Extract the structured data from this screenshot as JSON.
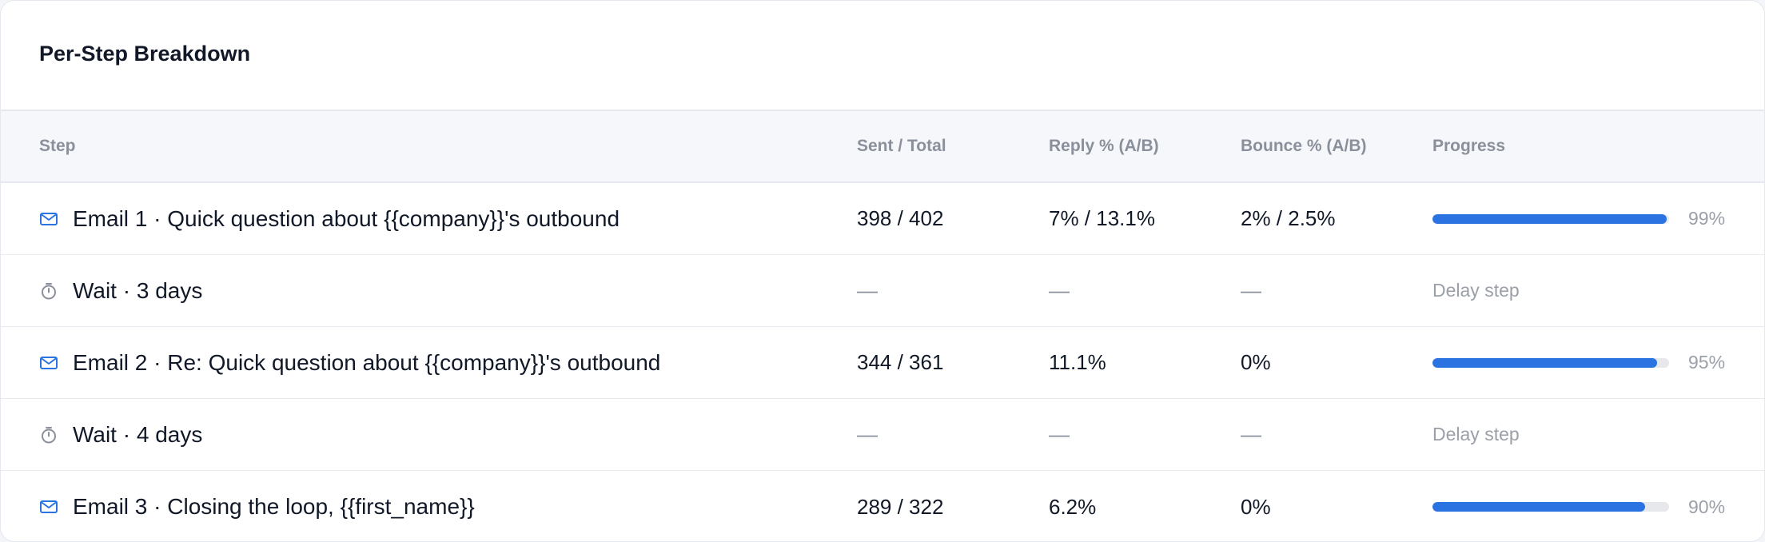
{
  "card": {
    "title": "Per-Step Breakdown"
  },
  "table": {
    "headers": {
      "step": "Step",
      "sent": "Sent / Total",
      "reply": "Reply % (A/B)",
      "bounce": "Bounce % (A/B)",
      "progress": "Progress"
    },
    "rows": [
      {
        "type": "email",
        "icon": "mail-icon",
        "label": "Email 1 · Quick question about {{company}}'s outbound",
        "sent": "398 / 402",
        "reply": "7% / 13.1%",
        "bounce": "2% / 2.5%",
        "progress": 0.99,
        "progress_label": "99%"
      },
      {
        "type": "wait",
        "icon": "timer-icon",
        "label": "Wait · 3 days",
        "sent": "—",
        "reply": "—",
        "bounce": "—",
        "delay_label": "Delay step"
      },
      {
        "type": "email",
        "icon": "mail-icon",
        "label": "Email 2 · Re: Quick question about {{company}}'s outbound",
        "sent": "344 / 361",
        "reply": "11.1%",
        "bounce": "0%",
        "progress": 0.95,
        "progress_label": "95%"
      },
      {
        "type": "wait",
        "icon": "timer-icon",
        "label": "Wait · 4 days",
        "sent": "—",
        "reply": "—",
        "bounce": "—",
        "delay_label": "Delay step"
      },
      {
        "type": "email",
        "icon": "mail-icon",
        "label": "Email 3 · Closing the loop, {{first_name}}",
        "sent": "289 / 322",
        "reply": "6.2%",
        "bounce": "0%",
        "progress": 0.9,
        "progress_label": "90%"
      }
    ]
  },
  "colors": {
    "accent": "#2b73e0",
    "muted": "#8a909b",
    "track": "#e6e8ec"
  }
}
